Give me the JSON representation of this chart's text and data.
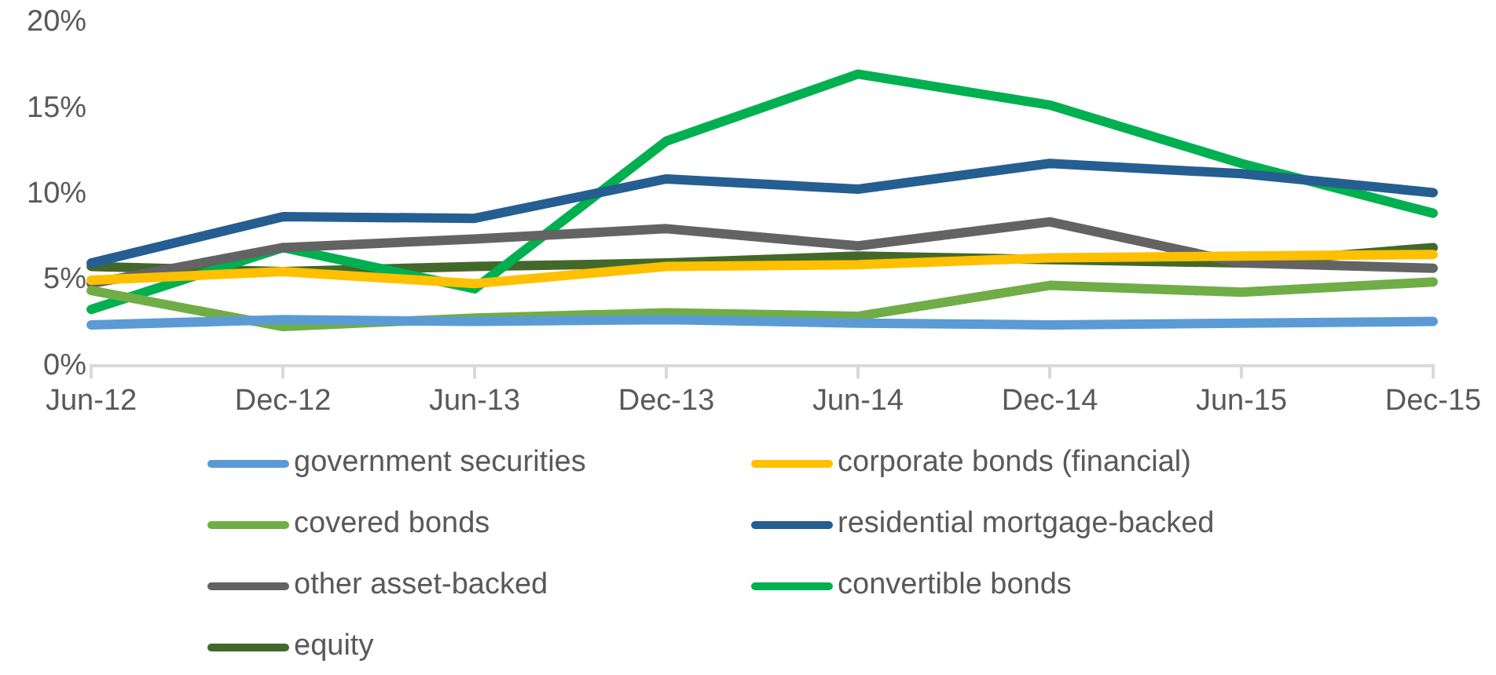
{
  "chart_data": {
    "type": "line",
    "categories": [
      "Jun-12",
      "Dec-12",
      "Jun-13",
      "Dec-13",
      "Jun-14",
      "Dec-14",
      "Jun-15",
      "Dec-15"
    ],
    "series": [
      {
        "name": "government securities",
        "color": "#5b9bd5",
        "values": [
          2.4,
          2.7,
          2.6,
          2.7,
          2.5,
          2.4,
          2.5,
          2.6
        ]
      },
      {
        "name": "corporate bonds (financial)",
        "color": "#ffc000",
        "values": [
          5.0,
          5.5,
          4.8,
          5.8,
          5.9,
          6.3,
          6.4,
          6.5
        ]
      },
      {
        "name": "covered bonds",
        "color": "#70ad47",
        "values": [
          4.4,
          2.3,
          2.8,
          3.1,
          2.9,
          4.7,
          4.3,
          4.9
        ]
      },
      {
        "name": "residential mortgage-backed",
        "color": "#255e91",
        "values": [
          6.0,
          8.7,
          8.6,
          10.9,
          10.3,
          11.8,
          11.2,
          10.1
        ]
      },
      {
        "name": "other asset-backed",
        "color": "#636363",
        "values": [
          4.8,
          6.9,
          7.4,
          8.0,
          7.0,
          8.4,
          6.0,
          5.7
        ]
      },
      {
        "name": "convertible bonds",
        "color": "#00b050",
        "values": [
          3.3,
          6.9,
          4.5,
          13.1,
          17.0,
          15.2,
          11.8,
          8.9
        ]
      },
      {
        "name": "equity",
        "color": "#43682b",
        "values": [
          5.8,
          5.5,
          5.8,
          6.0,
          6.4,
          6.2,
          6.0,
          6.9
        ]
      }
    ],
    "ylim": [
      0,
      20
    ],
    "yticks": [
      {
        "value": 0,
        "label": "0%"
      },
      {
        "value": 5,
        "label": "5%"
      },
      {
        "value": 10,
        "label": "10%"
      },
      {
        "value": 15,
        "label": "15%"
      },
      {
        "value": 20,
        "label": "20%"
      }
    ],
    "grid": false,
    "legend": "bottom",
    "marker": "none",
    "line_style": "solid"
  }
}
